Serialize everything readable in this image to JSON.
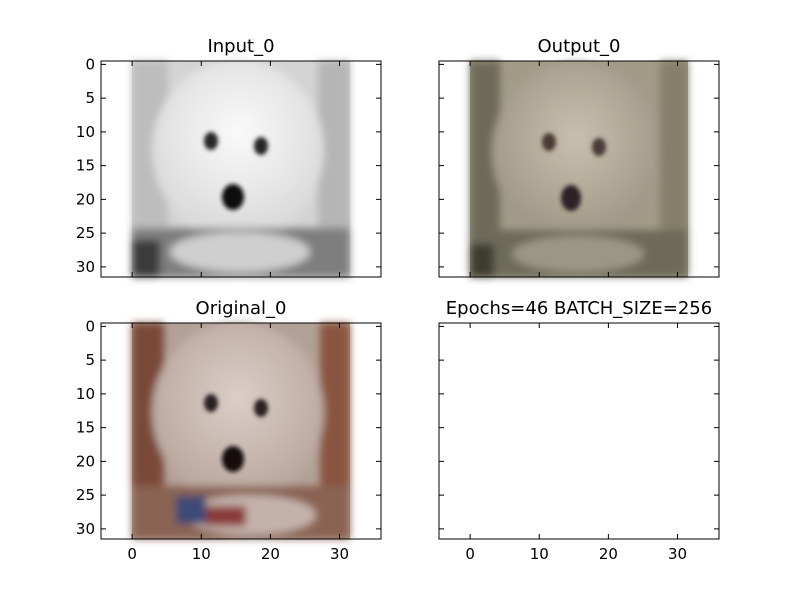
{
  "figure": {
    "panels": [
      {
        "title": "Input_0",
        "image": "grayscale-dog-photo",
        "y_ticks": [
          "0",
          "5",
          "10",
          "15",
          "20",
          "25",
          "30"
        ],
        "x_ticks": []
      },
      {
        "title": "Output_0",
        "image": "reconstructed-dog-photo",
        "y_ticks": [],
        "x_ticks": []
      },
      {
        "title": "Original_0",
        "image": "original-color-dog-photo",
        "y_ticks": [
          "0",
          "5",
          "10",
          "15",
          "20",
          "25",
          "30"
        ],
        "x_ticks": [
          "0",
          "10",
          "20",
          "30"
        ]
      },
      {
        "title": "Epochs=46 BATCH_SIZE=256",
        "image": "",
        "y_ticks": [],
        "x_ticks": [
          "0",
          "10",
          "20",
          "30"
        ]
      }
    ],
    "colors": {
      "input_tone": "#e6e6e6",
      "output_tone": "#b2a996",
      "original_tone": "#c6b4aa",
      "dog_features": "#1a1a1a"
    }
  }
}
